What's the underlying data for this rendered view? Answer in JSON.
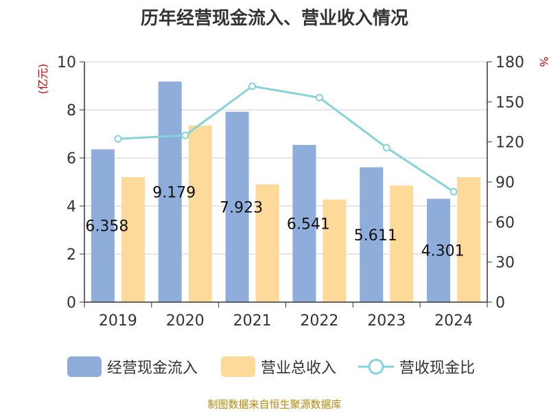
{
  "title": "历年经营现金流入、营业收入情况",
  "source": "制图数据来自恒生聚源数据库",
  "colors": {
    "cash_inflow": "#8eaddb",
    "revenue": "#fdd99a",
    "ratio": "#84d3d9"
  },
  "chart_data": {
    "type": "bar",
    "categories": [
      "2019",
      "2020",
      "2021",
      "2022",
      "2023",
      "2024"
    ],
    "series": [
      {
        "name": "经营现金流入",
        "kind": "bar",
        "axis": "left",
        "values": [
          6.358,
          9.179,
          7.923,
          6.541,
          5.611,
          4.301
        ],
        "labels": [
          "6.358",
          "9.179",
          "7.923",
          "6.541",
          "5.611",
          "4.301"
        ]
      },
      {
        "name": "营业总收入",
        "kind": "bar",
        "axis": "left",
        "values": [
          5.2,
          7.35,
          4.9,
          4.27,
          4.85,
          5.2
        ]
      },
      {
        "name": "营收现金比",
        "kind": "line",
        "axis": "right",
        "values": [
          122.3,
          124.9,
          161.7,
          153.2,
          115.7,
          82.7
        ]
      }
    ],
    "ylabel_left": "(亿元)",
    "ylabel_right": "%",
    "ylim_left": [
      0,
      10
    ],
    "ylim_right": [
      0,
      180
    ],
    "yticks_left": [
      "0",
      "2",
      "4",
      "6",
      "8",
      "10"
    ],
    "yticks_right": [
      "0",
      "30",
      "60",
      "90",
      "120",
      "150",
      "180"
    ],
    "grid": true,
    "legend_position": "bottom"
  }
}
